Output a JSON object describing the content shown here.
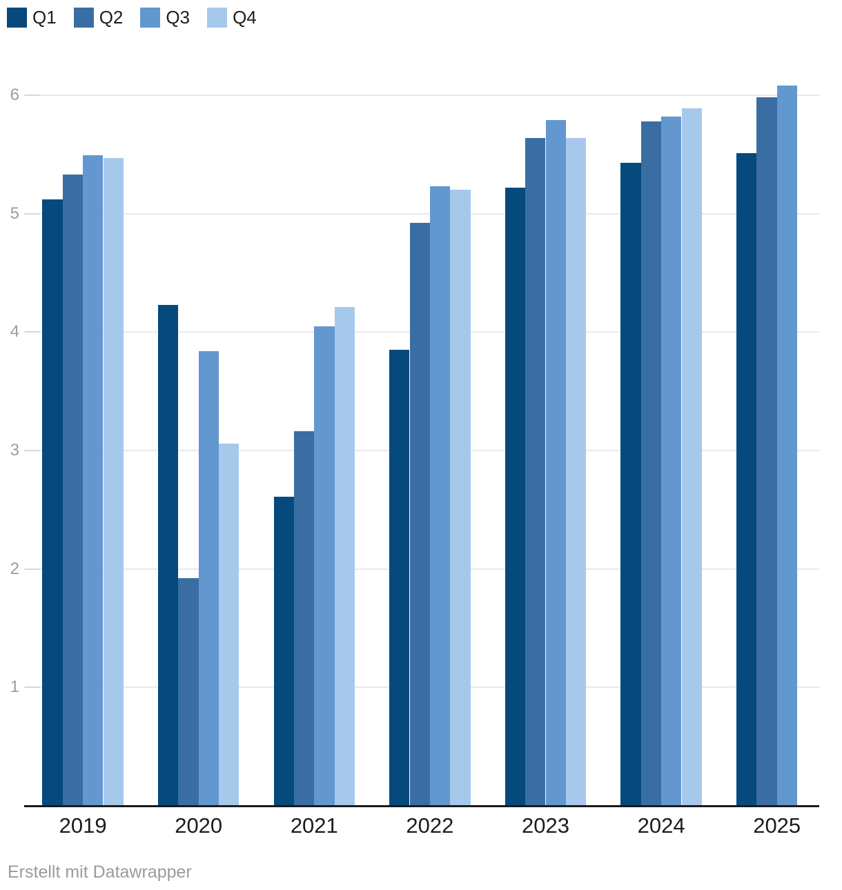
{
  "legend": {
    "items": [
      {
        "label": "Q1",
        "color": "#05497d"
      },
      {
        "label": "Q2",
        "color": "#3a6ea3"
      },
      {
        "label": "Q3",
        "color": "#6397cf"
      },
      {
        "label": "Q4",
        "color": "#a6c9eb"
      }
    ]
  },
  "chart_data": {
    "type": "bar",
    "title": "",
    "xlabel": "",
    "ylabel": "",
    "categories": [
      "2019",
      "2020",
      "2021",
      "2022",
      "2023",
      "2024",
      "2025"
    ],
    "series": [
      {
        "name": "Q1",
        "color": "#05497d",
        "values": [
          5.12,
          4.23,
          2.61,
          3.85,
          5.22,
          5.43,
          5.51
        ]
      },
      {
        "name": "Q2",
        "color": "#3a6ea3",
        "values": [
          5.33,
          1.92,
          3.16,
          4.92,
          5.64,
          5.78,
          5.98
        ]
      },
      {
        "name": "Q3",
        "color": "#6397cf",
        "values": [
          5.49,
          3.84,
          4.05,
          5.23,
          5.79,
          5.82,
          6.08
        ]
      },
      {
        "name": "Q4",
        "color": "#a6c9eb",
        "values": [
          5.47,
          3.06,
          4.21,
          5.2,
          5.64,
          5.89,
          null
        ]
      }
    ],
    "ylim": [
      0,
      6.35
    ],
    "yticks": [
      1,
      2,
      3,
      4,
      5,
      6
    ],
    "grid": true,
    "legend_position": "top-left"
  },
  "footer": {
    "attribution": "Erstellt mit Datawrapper"
  }
}
